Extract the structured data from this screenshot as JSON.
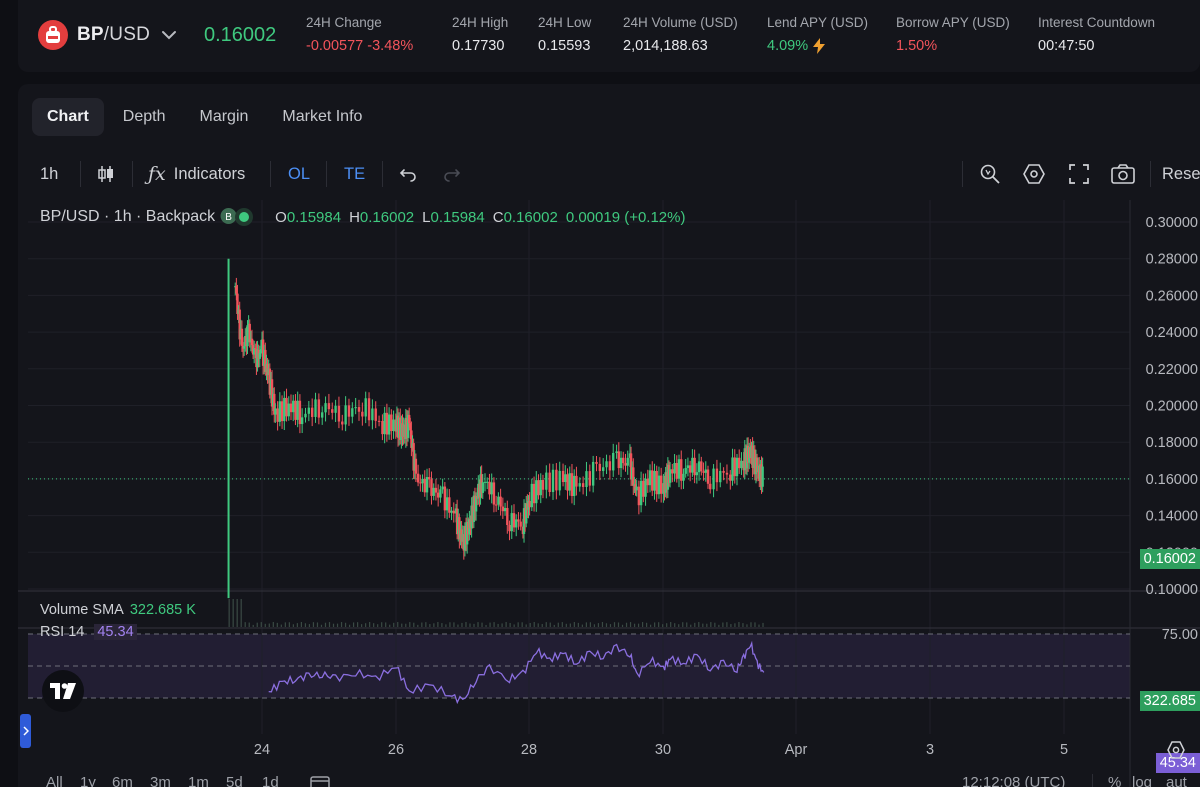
{
  "ticker": {
    "base": "BP",
    "quote": "/USD",
    "last_price": "0.16002",
    "stats": [
      {
        "label": "24H Change",
        "value": "-0.00577 -3.48%",
        "tone": "red"
      },
      {
        "label": "24H High",
        "value": "0.17730",
        "tone": "neutral"
      },
      {
        "label": "24H Low",
        "value": "0.15593",
        "tone": "neutral"
      },
      {
        "label": "24H Volume (USD)",
        "value": "2,014,188.63",
        "tone": "neutral"
      },
      {
        "label": "Lend APY (USD)",
        "value": "4.09%",
        "tone": "green",
        "icon": "lightning-icon"
      },
      {
        "label": "Borrow APY (USD)",
        "value": "1.50%",
        "tone": "red"
      },
      {
        "label": "Interest Countdown",
        "value": "00:47:50",
        "tone": "neutral"
      }
    ]
  },
  "tabs": [
    "Chart",
    "Depth",
    "Margin",
    "Market Info"
  ],
  "toolbar": {
    "interval": "1h",
    "indicators": "Indicators",
    "ol": "OL",
    "te": "TE",
    "reset": "Rese"
  },
  "chart_data": {
    "type": "candlestick",
    "title": "BP/USD · 1h · Backpack",
    "ohlc": {
      "O": "0.15984",
      "H": "0.16002",
      "L": "0.15984",
      "C": "0.16002",
      "change": "0.00019 (+0.12%)"
    },
    "x_ticks": [
      "24",
      "26",
      "28",
      "30",
      "Apr",
      "3",
      "5"
    ],
    "y_ticks": [
      "0.30000",
      "0.28000",
      "0.26000",
      "0.24000",
      "0.22000",
      "0.20000",
      "0.18000",
      "0.16000",
      "0.14000",
      "0.12000",
      "0.10000"
    ],
    "ylim": [
      0.1,
      0.3
    ],
    "last_price": "0.16002",
    "close_series": [
      {
        "x": 23.6,
        "y": 0.265
      },
      {
        "x": 23.7,
        "y": 0.23
      },
      {
        "x": 23.8,
        "y": 0.24
      },
      {
        "x": 23.9,
        "y": 0.225
      },
      {
        "x": 24.0,
        "y": 0.23
      },
      {
        "x": 24.1,
        "y": 0.215
      },
      {
        "x": 24.2,
        "y": 0.195
      },
      {
        "x": 24.4,
        "y": 0.2
      },
      {
        "x": 24.6,
        "y": 0.195
      },
      {
        "x": 24.9,
        "y": 0.2
      },
      {
        "x": 25.2,
        "y": 0.195
      },
      {
        "x": 25.5,
        "y": 0.2
      },
      {
        "x": 25.8,
        "y": 0.19
      },
      {
        "x": 26.0,
        "y": 0.19
      },
      {
        "x": 26.1,
        "y": 0.185
      },
      {
        "x": 26.2,
        "y": 0.19
      },
      {
        "x": 26.3,
        "y": 0.16
      },
      {
        "x": 26.5,
        "y": 0.155
      },
      {
        "x": 26.7,
        "y": 0.15
      },
      {
        "x": 26.9,
        "y": 0.138
      },
      {
        "x": 27.0,
        "y": 0.125
      },
      {
        "x": 27.1,
        "y": 0.135
      },
      {
        "x": 27.2,
        "y": 0.15
      },
      {
        "x": 27.3,
        "y": 0.16
      },
      {
        "x": 27.5,
        "y": 0.15
      },
      {
        "x": 27.7,
        "y": 0.137
      },
      {
        "x": 27.9,
        "y": 0.136
      },
      {
        "x": 28.0,
        "y": 0.15
      },
      {
        "x": 28.2,
        "y": 0.158
      },
      {
        "x": 28.5,
        "y": 0.16
      },
      {
        "x": 28.7,
        "y": 0.155
      },
      {
        "x": 29.0,
        "y": 0.165
      },
      {
        "x": 29.3,
        "y": 0.17
      },
      {
        "x": 29.5,
        "y": 0.168
      },
      {
        "x": 29.6,
        "y": 0.15
      },
      {
        "x": 29.8,
        "y": 0.16
      },
      {
        "x": 30.0,
        "y": 0.155
      },
      {
        "x": 30.1,
        "y": 0.165
      },
      {
        "x": 30.3,
        "y": 0.165
      },
      {
        "x": 30.5,
        "y": 0.168
      },
      {
        "x": 30.7,
        "y": 0.16
      },
      {
        "x": 31.0,
        "y": 0.165
      },
      {
        "x": 31.2,
        "y": 0.17
      },
      {
        "x": 31.3,
        "y": 0.175
      },
      {
        "x": 31.4,
        "y": 0.165
      },
      {
        "x": 31.5,
        "y": 0.16
      }
    ],
    "volume_sma": {
      "label": "Volume SMA",
      "value": "322.685 K",
      "axis_value": "322.685"
    },
    "rsi": {
      "label": "RSI 14",
      "value": "45.34",
      "levels": [
        "75.00",
        "50.00",
        "25.00"
      ],
      "series": [
        {
          "x": 24.1,
          "y": 30
        },
        {
          "x": 24.3,
          "y": 37
        },
        {
          "x": 24.5,
          "y": 40
        },
        {
          "x": 24.7,
          "y": 42
        },
        {
          "x": 24.9,
          "y": 44
        },
        {
          "x": 25.1,
          "y": 40
        },
        {
          "x": 25.4,
          "y": 45
        },
        {
          "x": 25.7,
          "y": 40
        },
        {
          "x": 26.0,
          "y": 50
        },
        {
          "x": 26.2,
          "y": 30
        },
        {
          "x": 26.5,
          "y": 35
        },
        {
          "x": 26.8,
          "y": 28
        },
        {
          "x": 27.0,
          "y": 22
        },
        {
          "x": 27.2,
          "y": 40
        },
        {
          "x": 27.4,
          "y": 48
        },
        {
          "x": 27.7,
          "y": 40
        },
        {
          "x": 27.9,
          "y": 44
        },
        {
          "x": 28.1,
          "y": 62
        },
        {
          "x": 28.3,
          "y": 55
        },
        {
          "x": 28.5,
          "y": 60
        },
        {
          "x": 28.7,
          "y": 52
        },
        {
          "x": 28.9,
          "y": 60
        },
        {
          "x": 29.1,
          "y": 58
        },
        {
          "x": 29.3,
          "y": 64
        },
        {
          "x": 29.5,
          "y": 60
        },
        {
          "x": 29.6,
          "y": 42
        },
        {
          "x": 29.8,
          "y": 55
        },
        {
          "x": 30.0,
          "y": 48
        },
        {
          "x": 30.1,
          "y": 56
        },
        {
          "x": 30.3,
          "y": 52
        },
        {
          "x": 30.5,
          "y": 58
        },
        {
          "x": 30.7,
          "y": 48
        },
        {
          "x": 30.9,
          "y": 52
        },
        {
          "x": 31.1,
          "y": 48
        },
        {
          "x": 31.2,
          "y": 56
        },
        {
          "x": 31.3,
          "y": 68
        },
        {
          "x": 31.4,
          "y": 52
        },
        {
          "x": 31.5,
          "y": 45
        }
      ]
    }
  },
  "bottom_bar": {
    "ranges": [
      "All",
      "1y",
      "6m",
      "3m",
      "1m",
      "5d",
      "1d"
    ],
    "time": "12:12:08 (UTC)",
    "percent": "%",
    "log": "log",
    "auto": "aut"
  },
  "colors": {
    "up": "#3fc97f",
    "down": "#f2545b",
    "rsi": "#8b6fe0",
    "accent": "#4c8ff5"
  }
}
